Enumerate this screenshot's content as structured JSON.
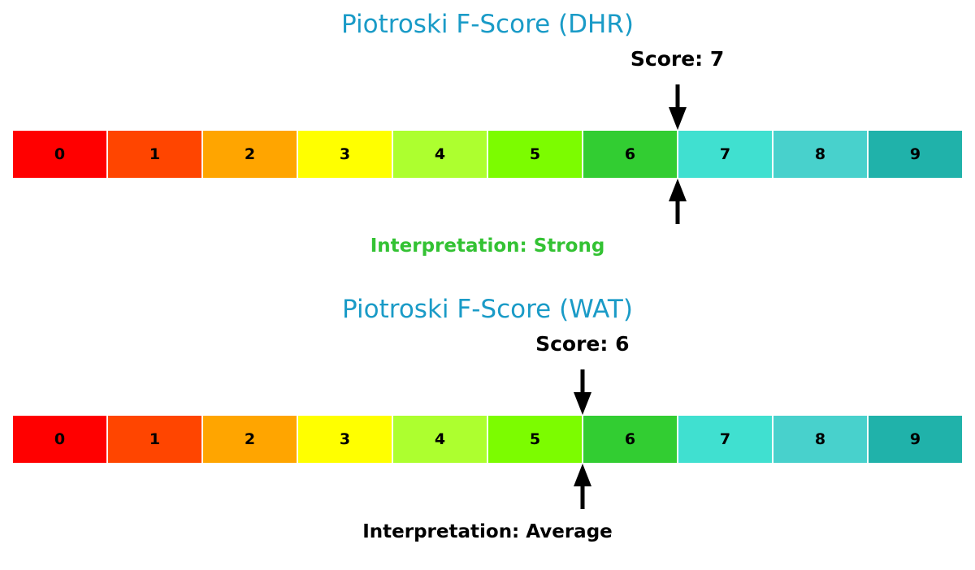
{
  "chart_data": [
    {
      "type": "gauge-bar",
      "title": "Piotroski F-Score (DHR)",
      "ticker": "DHR",
      "score": 7,
      "score_label": "Score: 7",
      "interpretation": "Interpretation: Strong",
      "interpretation_color": "#33c233",
      "title_color": "#1a9bc7",
      "categories": [
        "0",
        "1",
        "2",
        "3",
        "4",
        "5",
        "6",
        "7",
        "8",
        "9"
      ],
      "colors": [
        "#ff0000",
        "#ff4500",
        "#ffa500",
        "#ffff00",
        "#adff2f",
        "#7cfc00",
        "#32cd32",
        "#40e0d0",
        "#48d1cc",
        "#20b2aa"
      ],
      "xlim": [
        0,
        10
      ]
    },
    {
      "type": "gauge-bar",
      "title": "Piotroski F-Score (WAT)",
      "ticker": "WAT",
      "score": 6,
      "score_label": "Score: 6",
      "interpretation": "Interpretation: Average",
      "interpretation_color": "#000000",
      "title_color": "#1a9bc7",
      "categories": [
        "0",
        "1",
        "2",
        "3",
        "4",
        "5",
        "6",
        "7",
        "8",
        "9"
      ],
      "colors": [
        "#ff0000",
        "#ff4500",
        "#ffa500",
        "#ffff00",
        "#adff2f",
        "#7cfc00",
        "#32cd32",
        "#40e0d0",
        "#48d1cc",
        "#20b2aa"
      ],
      "xlim": [
        0,
        10
      ]
    }
  ]
}
